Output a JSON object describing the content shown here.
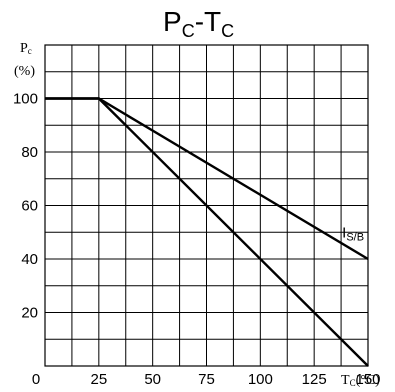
{
  "chart_data": {
    "type": "line",
    "title": {
      "main": "P",
      "main_sub": "C",
      "sep": "-T",
      "sep_sub": "C"
    },
    "ylabel": {
      "line1_main": "P",
      "line1_sub": "c",
      "line2": "(%)"
    },
    "xlabel": {
      "main": "T",
      "sub": "C",
      "unit": "(°C)"
    },
    "xlim": [
      0,
      150
    ],
    "ylim": [
      0,
      120
    ],
    "x_ticks": [
      "0",
      "25",
      "50",
      "75",
      "100",
      "125",
      "150"
    ],
    "x_tick_values": [
      0,
      25,
      50,
      75,
      100,
      125,
      150
    ],
    "y_ticks": [
      "20",
      "40",
      "60",
      "80",
      "100"
    ],
    "y_tick_values": [
      20,
      40,
      60,
      80,
      100
    ],
    "grid": true,
    "grid_step": {
      "x": 12.5,
      "y": 10
    },
    "series": [
      {
        "name": "",
        "x": [
          0,
          25,
          150
        ],
        "y": [
          100,
          100,
          0
        ]
      },
      {
        "name": "I_S/B",
        "x": [
          0,
          25,
          150
        ],
        "y": [
          100,
          100,
          40
        ]
      }
    ],
    "annotations": [
      {
        "text": "I",
        "sub": "S/B",
        "x": 138,
        "y": 50
      }
    ]
  }
}
